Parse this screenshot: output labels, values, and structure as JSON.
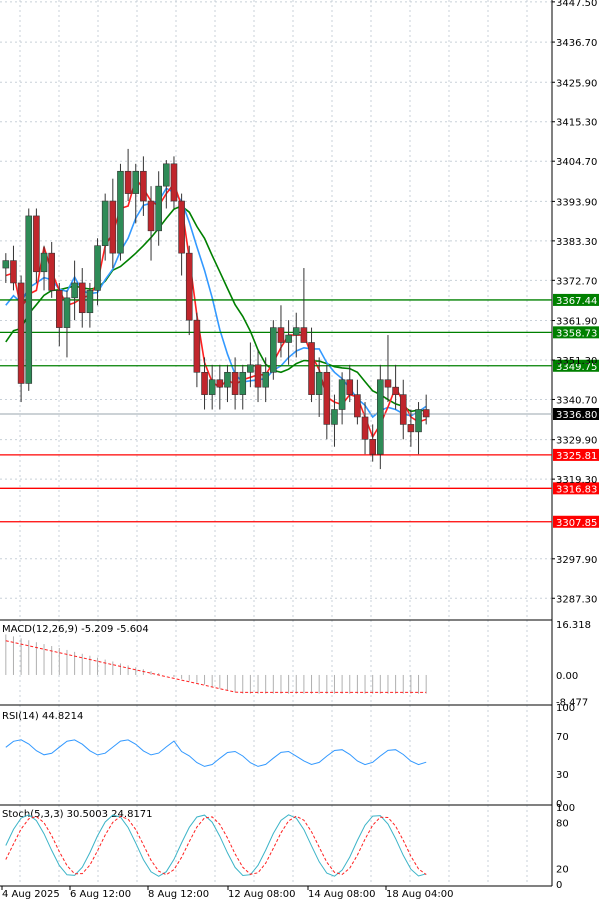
{
  "chart_data": {
    "type": "candlestick",
    "instrument_note": "",
    "main": {
      "price_ticks": [
        "3447.50",
        "3436.70",
        "3425.90",
        "3415.30",
        "3404.70",
        "3393.90",
        "3383.30",
        "3372.70",
        "3361.90",
        "3351.30",
        "3340.70",
        "3329.90",
        "3319.30",
        "3297.90",
        "3287.30"
      ],
      "ylim": [
        3282,
        3448
      ],
      "candles": [
        [
          3376,
          3380,
          3372,
          3378
        ],
        [
          3378,
          3382,
          3370,
          3372
        ],
        [
          3372,
          3374,
          3340,
          3345
        ],
        [
          3345,
          3392,
          3343,
          3390
        ],
        [
          3390,
          3392,
          3372,
          3375
        ],
        [
          3375,
          3382,
          3370,
          3380
        ],
        [
          3380,
          3383,
          3368,
          3370
        ],
        [
          3370,
          3372,
          3355,
          3360
        ],
        [
          3360,
          3370,
          3352,
          3368
        ],
        [
          3368,
          3378,
          3362,
          3372
        ],
        [
          3372,
          3376,
          3360,
          3364
        ],
        [
          3364,
          3372,
          3360,
          3370
        ],
        [
          3370,
          3384,
          3366,
          3382
        ],
        [
          3382,
          3396,
          3378,
          3394
        ],
        [
          3394,
          3400,
          3376,
          3380
        ],
        [
          3380,
          3404,
          3378,
          3402
        ],
        [
          3402,
          3408,
          3394,
          3396
        ],
        [
          3396,
          3404,
          3388,
          3402
        ],
        [
          3402,
          3406,
          3390,
          3394
        ],
        [
          3394,
          3398,
          3378,
          3386
        ],
        [
          3386,
          3402,
          3382,
          3398
        ],
        [
          3398,
          3405,
          3392,
          3404
        ],
        [
          3404,
          3406,
          3392,
          3394
        ],
        [
          3394,
          3396,
          3374,
          3380
        ],
        [
          3380,
          3382,
          3358,
          3362
        ],
        [
          3362,
          3364,
          3344,
          3348
        ],
        [
          3348,
          3352,
          3338,
          3342
        ],
        [
          3342,
          3350,
          3338,
          3346
        ],
        [
          3346,
          3350,
          3338,
          3344
        ],
        [
          3344,
          3350,
          3340,
          3348
        ],
        [
          3348,
          3352,
          3338,
          3342
        ],
        [
          3342,
          3350,
          3338,
          3348
        ],
        [
          3348,
          3356,
          3344,
          3350
        ],
        [
          3350,
          3354,
          3340,
          3344
        ],
        [
          3344,
          3352,
          3340,
          3348
        ],
        [
          3348,
          3362,
          3346,
          3360
        ],
        [
          3360,
          3366,
          3352,
          3356
        ],
        [
          3356,
          3362,
          3350,
          3358
        ],
        [
          3358,
          3364,
          3352,
          3360
        ],
        [
          3360,
          3376,
          3356,
          3356
        ],
        [
          3356,
          3360,
          3340,
          3342
        ],
        [
          3342,
          3352,
          3336,
          3348
        ],
        [
          3348,
          3350,
          3330,
          3334
        ],
        [
          3334,
          3342,
          3328,
          3338
        ],
        [
          3338,
          3348,
          3334,
          3346
        ],
        [
          3346,
          3350,
          3340,
          3342
        ],
        [
          3342,
          3346,
          3334,
          3336
        ],
        [
          3336,
          3340,
          3326,
          3330
        ],
        [
          3330,
          3334,
          3324,
          3326
        ],
        [
          3326,
          3350,
          3322,
          3346
        ],
        [
          3346,
          3358,
          3340,
          3344
        ],
        [
          3344,
          3350,
          3338,
          3342
        ],
        [
          3342,
          3346,
          3330,
          3334
        ],
        [
          3334,
          3338,
          3328,
          3332
        ],
        [
          3332,
          3340,
          3326,
          3338
        ],
        [
          3338,
          3342,
          3334,
          3336
        ]
      ],
      "levels": [
        {
          "value": 3367.44,
          "label": "3367.44",
          "color": "#008000"
        },
        {
          "value": 3358.73,
          "label": "3358.73",
          "color": "#008000"
        },
        {
          "value": 3349.75,
          "label": "3349.75",
          "color": "#008000"
        },
        {
          "value": 3325.81,
          "label": "3325.81",
          "color": "#ff0000"
        },
        {
          "value": 3316.83,
          "label": "3316.83",
          "color": "#ff0000"
        },
        {
          "value": 3307.85,
          "label": "3307.85",
          "color": "#ff0000"
        }
      ],
      "current_price": {
        "value": 3336.8,
        "label": "3336.80"
      },
      "ma_colors": {
        "fast": "#ff2020",
        "mid": "#3399ff",
        "slow": "#008000"
      }
    },
    "macd": {
      "label": "MACD(12,26,9) -5.209 -5.604",
      "ticks": [
        "16.318",
        "0.00",
        "-8.477"
      ],
      "ylim": [
        -9,
        17
      ]
    },
    "rsi": {
      "label": "RSI(14) 44.8214",
      "ticks": [
        "100",
        "70",
        "30",
        "0"
      ],
      "ylim": [
        0,
        100
      ]
    },
    "stoch": {
      "label": "Stoch(5,3,3) 30.5003 24.8171",
      "ticks": [
        "100",
        "80",
        "20",
        "0"
      ],
      "ylim": [
        0,
        100
      ]
    },
    "x_ticks": [
      "4 Aug 2025",
      "6 Aug 12:00",
      "8 Aug 12:00",
      "12 Aug 08:00",
      "14 Aug 08:00",
      "18 Aug 04:00"
    ]
  }
}
